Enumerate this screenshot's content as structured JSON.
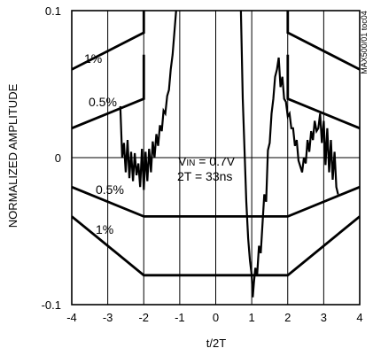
{
  "chart_data": {
    "type": "line",
    "xlabel": "t/2T",
    "ylabel": "NORMALIZED AMPLITUDE",
    "xlim": [
      -4,
      4
    ],
    "ylim": [
      -0.1,
      0.1
    ],
    "grid": true,
    "x_ticks": [
      -4,
      -3,
      -2,
      -1,
      0,
      1,
      2,
      3,
      4
    ],
    "y_ticks": [
      -0.1,
      0,
      0.1
    ],
    "x_tick_labels": [
      "-4",
      "-3",
      "-2",
      "-1",
      "0",
      "1",
      "2",
      "3",
      "4"
    ],
    "y_tick_labels": [
      "-0.1",
      "0",
      "0.1"
    ],
    "figure_code": "MAX500/01 toc04",
    "annotations": {
      "vin": "VIN = 0.7V",
      "vin_main": "V",
      "vin_sub": "IN",
      "vin_rest": " = 0.7V",
      "period": "2T = 33ns"
    },
    "mask_labels": {
      "upper_1pct": "1%",
      "upper_05pct": "0.5%",
      "lower_05pct": "0.5%",
      "lower_1pct": "1%"
    },
    "series": [
      {
        "id": "mask_upper_1pct",
        "x": [
          -4,
          -2,
          -2
        ],
        "y": [
          0.06,
          0.085,
          0.1
        ]
      },
      {
        "id": "mask_upper_05pct",
        "x": [
          -4,
          -2,
          -2
        ],
        "y": [
          0.02,
          0.04,
          0.07
        ]
      },
      {
        "id": "mask_lower_05pct",
        "x": [
          -4,
          -2,
          2,
          4
        ],
        "y": [
          -0.02,
          -0.04,
          -0.04,
          -0.02
        ]
      },
      {
        "id": "mask_lower_1pct",
        "x": [
          -4,
          -2,
          2,
          4
        ],
        "y": [
          -0.04,
          -0.08,
          -0.08,
          -0.04
        ]
      },
      {
        "id": "mask_right_upper_1pct",
        "x": [
          2,
          2,
          4
        ],
        "y": [
          0.1,
          0.085,
          0.06
        ]
      },
      {
        "id": "mask_right_upper_05pct",
        "x": [
          2,
          2,
          4
        ],
        "y": [
          0.07,
          0.04,
          0.02
        ]
      },
      {
        "id": "signal",
        "x": [
          -2.65,
          -2.6,
          -2.55,
          -2.5,
          -2.45,
          -2.4,
          -2.35,
          -2.3,
          -2.25,
          -2.2,
          -2.15,
          -2.1,
          -2.05,
          -2.0,
          -1.95,
          -1.9,
          -1.85,
          -1.8,
          -1.75,
          -1.7,
          -1.65,
          -1.6,
          -1.55,
          -1.5,
          -1.45,
          -1.4,
          -1.35,
          -1.3,
          -1.25,
          -1.2,
          -1.15,
          -1.1
        ],
        "y": [
          0.035,
          0.0,
          0.01,
          -0.01,
          0.012,
          -0.014,
          0.004,
          -0.016,
          0.003,
          -0.012,
          -0.004,
          -0.02,
          0.006,
          -0.022,
          0.004,
          -0.016,
          0.006,
          -0.01,
          0.011,
          0.0,
          0.016,
          0.008,
          0.022,
          0.018,
          0.032,
          0.03,
          0.042,
          0.046,
          0.06,
          0.07,
          0.085,
          0.1
        ]
      },
      {
        "id": "signal_right",
        "x": [
          0.7,
          0.75,
          0.8,
          0.85,
          0.9,
          0.95,
          1.0,
          1.03,
          1.06,
          1.1,
          1.15,
          1.2,
          1.25,
          1.3,
          1.35,
          1.4,
          1.45,
          1.5,
          1.55,
          1.6,
          1.65,
          1.7,
          1.75,
          1.8,
          1.85,
          1.9,
          1.95,
          2.0,
          2.05,
          2.1,
          2.15,
          2.2,
          2.25,
          2.3,
          2.35,
          2.4,
          2.45,
          2.5,
          2.55,
          2.6,
          2.65,
          2.7,
          2.75,
          2.8,
          2.85,
          2.9,
          2.95,
          3.0,
          3.05,
          3.1,
          3.15,
          3.2,
          3.25,
          3.3,
          3.35,
          3.4
        ],
        "y": [
          0.1,
          0.04,
          0.005,
          -0.03,
          -0.055,
          -0.07,
          -0.08,
          -0.095,
          -0.085,
          -0.075,
          -0.08,
          -0.06,
          -0.065,
          -0.045,
          -0.025,
          -0.03,
          0.005,
          0.01,
          0.03,
          0.04,
          0.055,
          0.06,
          0.068,
          0.048,
          0.055,
          0.04,
          0.038,
          0.028,
          0.03,
          0.02,
          0.02,
          0.008,
          0.012,
          -0.002,
          -0.006,
          -0.01,
          0.0,
          -0.004,
          0.012,
          0.004,
          0.018,
          0.012,
          0.025,
          0.018,
          0.02,
          0.03,
          0.01,
          0.025,
          -0.005,
          0.02,
          -0.01,
          0.012,
          -0.015,
          0.004,
          -0.02,
          -0.025
        ]
      }
    ]
  }
}
